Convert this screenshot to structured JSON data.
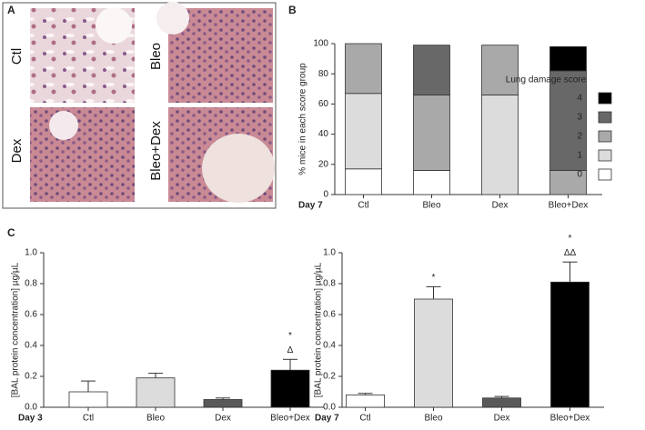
{
  "figure": {
    "panel_labels": [
      "A",
      "B",
      "C"
    ],
    "histology_labels": [
      "Ctl",
      "Bleo",
      "Dex",
      "Bleo+Dex"
    ]
  },
  "chart_data": [
    {
      "type": "stacked_bar",
      "x_label": "Day 7",
      "y_label": "% mice in each score group",
      "categories": [
        "Ctl",
        "Bleo",
        "Dex",
        "Bleo+Dex"
      ],
      "legend_title": "Lung damage score",
      "series": [
        {
          "name": "0",
          "color": "#ffffff",
          "values": [
            17,
            16,
            0,
            0
          ]
        },
        {
          "name": "1",
          "color": "#dcdcdc",
          "values": [
            50,
            0,
            66,
            0
          ]
        },
        {
          "name": "2",
          "color": "#a9a9a9",
          "values": [
            33,
            50,
            33,
            16
          ]
        },
        {
          "name": "3",
          "color": "#686868",
          "values": [
            0,
            33,
            0,
            66
          ]
        },
        {
          "name": "4",
          "color": "#000000",
          "values": [
            0,
            0,
            0,
            16
          ]
        }
      ],
      "ylim": [
        0,
        100
      ],
      "yticks": [
        0,
        20,
        40,
        60,
        80,
        100
      ]
    },
    {
      "type": "bar",
      "x_label": "Day 3",
      "y_label": "[BAL protein concentration] µg/µL",
      "categories": [
        "Ctl",
        "Bleo",
        "Dex",
        "Bleo+Dex"
      ],
      "values": [
        0.1,
        0.19,
        0.05,
        0.24
      ],
      "errors": [
        0.07,
        0.03,
        0.01,
        0.07
      ],
      "colors": [
        "#ffffff",
        "#dcdcdc",
        "#595959",
        "#000000"
      ],
      "annotations": [
        {
          "x": "Bleo+Dex",
          "text": "Δ"
        },
        {
          "x": "Bleo+Dex",
          "text": "*"
        }
      ],
      "ylim": [
        0,
        1.0
      ],
      "yticks": [
        {
          "value": 0,
          "label": "0.0"
        },
        0.2,
        0.4,
        0.6,
        0.8,
        {
          "value": 1.0,
          "label": "1.0"
        }
      ]
    },
    {
      "type": "bar",
      "x_label": "Day 7",
      "y_label": "[BAL protein concentration] µg/µL",
      "categories": [
        "Ctl",
        "Bleo",
        "Dex",
        "Bleo+Dex"
      ],
      "values": [
        0.08,
        0.7,
        0.06,
        0.81
      ],
      "errors": [
        0.01,
        0.08,
        0.01,
        0.13
      ],
      "colors": [
        "#ffffff",
        "#dcdcdc",
        "#595959",
        "#000000"
      ],
      "annotations": [
        {
          "x": "Bleo",
          "text": "*"
        },
        {
          "x": "Bleo+Dex",
          "text": "ΔΔ"
        },
        {
          "x": "Bleo+Dex",
          "text": "*"
        }
      ],
      "ylim": [
        0,
        1.0
      ],
      "yticks": [
        {
          "value": 0,
          "label": "0.0"
        },
        0.2,
        0.4,
        0.6,
        0.8,
        {
          "value": 1.0,
          "label": "1.0"
        }
      ]
    }
  ]
}
